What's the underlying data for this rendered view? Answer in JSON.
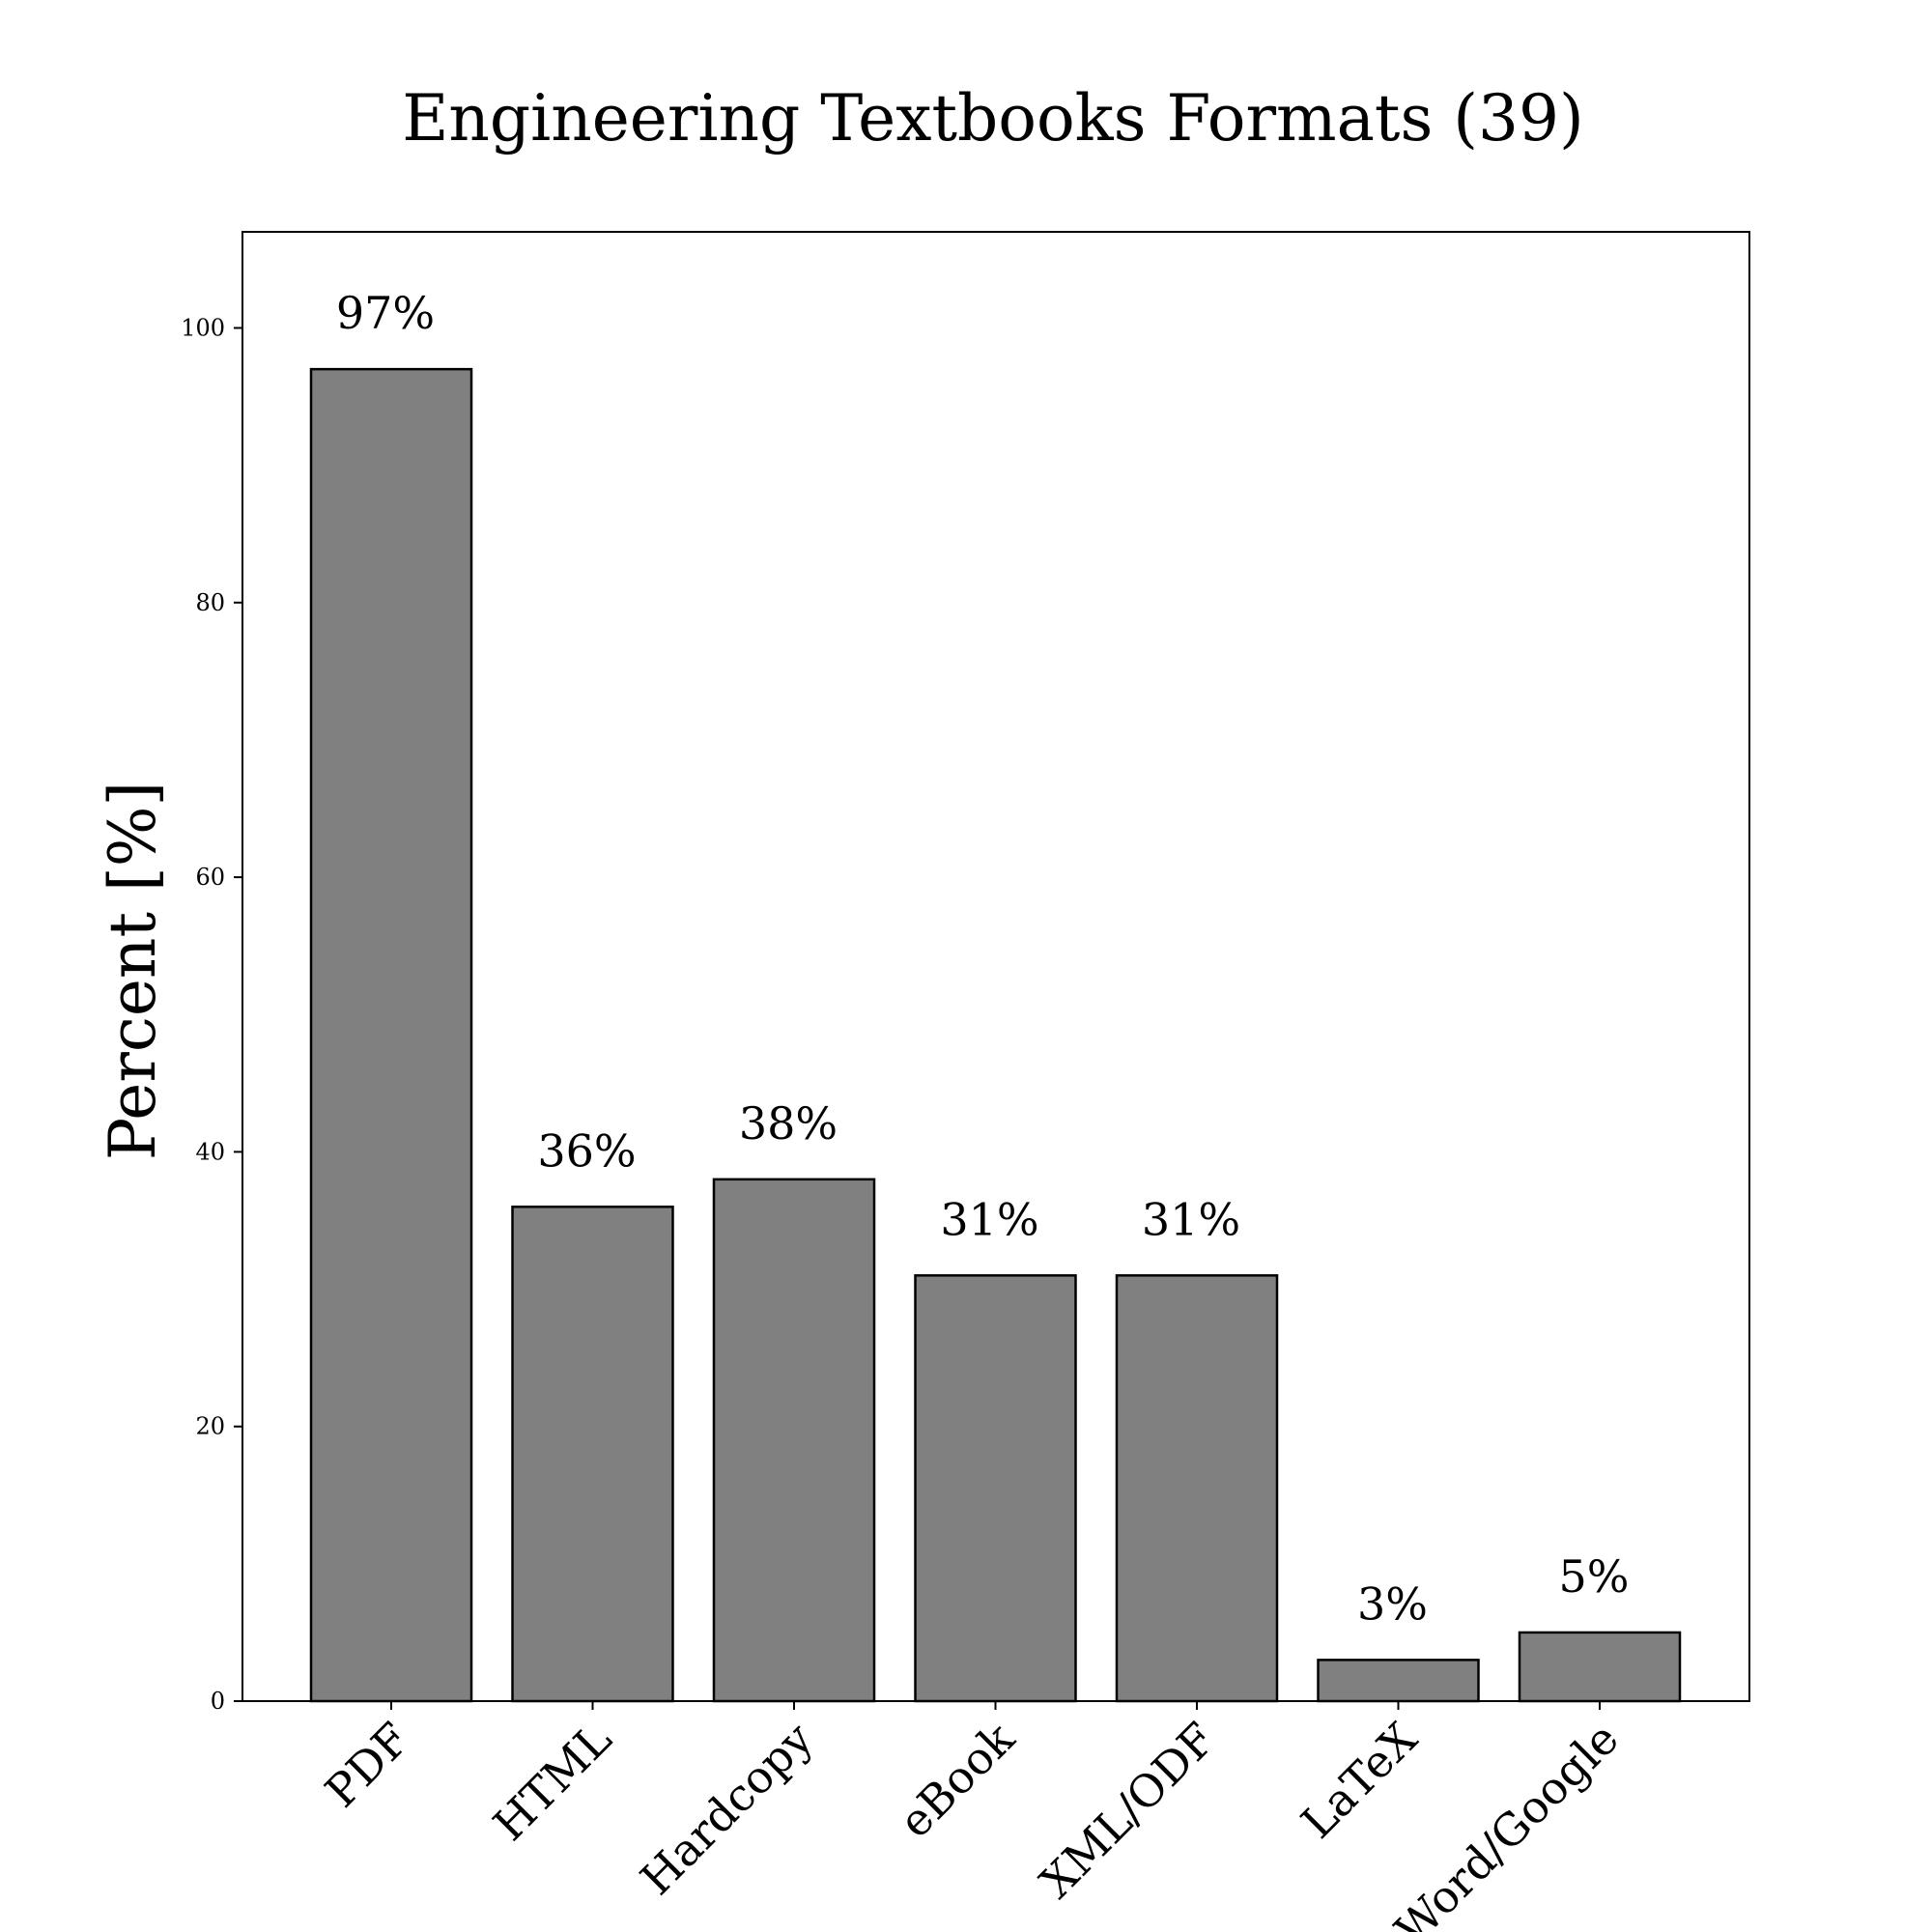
{
  "chart_data": {
    "type": "bar",
    "title": "Engineering Textbooks Formats (39)",
    "xlabel": "",
    "ylabel": "Percent [%]",
    "categories": [
      "PDF",
      "HTML",
      "Hardcopy",
      "eBook",
      "XML/ODF",
      "LaTeX",
      "Word/Google"
    ],
    "values": [
      97,
      36,
      38,
      31,
      31,
      3,
      5
    ],
    "data_labels": [
      "97%",
      "36%",
      "38%",
      "31%",
      "31%",
      "3%",
      "5%"
    ],
    "ylim": [
      0,
      107
    ],
    "yticks": [
      0,
      20,
      40,
      60,
      80,
      100
    ],
    "bar_color": "#808080",
    "edge_color": "#000000",
    "grid": false,
    "legend": "none"
  }
}
